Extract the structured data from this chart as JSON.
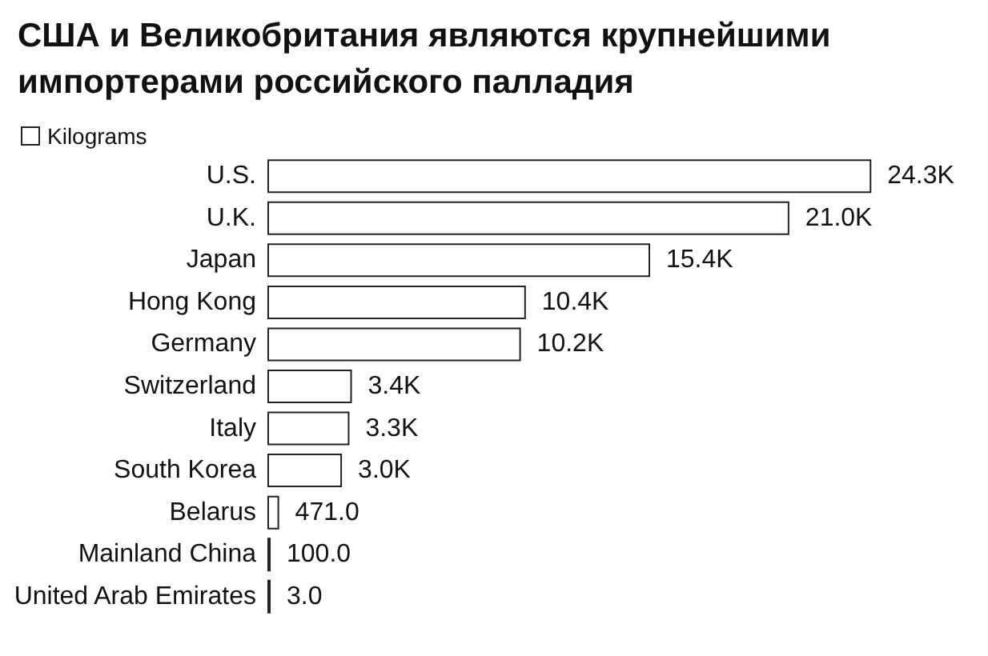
{
  "chart_data": {
    "type": "bar",
    "orientation": "horizontal",
    "title": "США и Великобритания являются крупнейшими импортерами российского палладия",
    "categories": [
      "U.S.",
      "U.K.",
      "Japan",
      "Hong Kong",
      "Germany",
      "Switzerland",
      "Italy",
      "South Korea",
      "Belarus",
      "Mainland China",
      "United Arab Emirates"
    ],
    "series": [
      {
        "name": "Kilograms",
        "color": "#ffffff",
        "values": [
          24300,
          21000,
          15400,
          10400,
          10200,
          3400,
          3300,
          3000,
          471,
          100,
          3
        ],
        "value_labels": [
          "24.3K",
          "21.0K",
          "15.4K",
          "10.4K",
          "10.2K",
          "3.4K",
          "3.3K",
          "3.0K",
          "471.0",
          "100.0",
          "3.0"
        ]
      }
    ],
    "legend": "top left",
    "grid": false
  }
}
